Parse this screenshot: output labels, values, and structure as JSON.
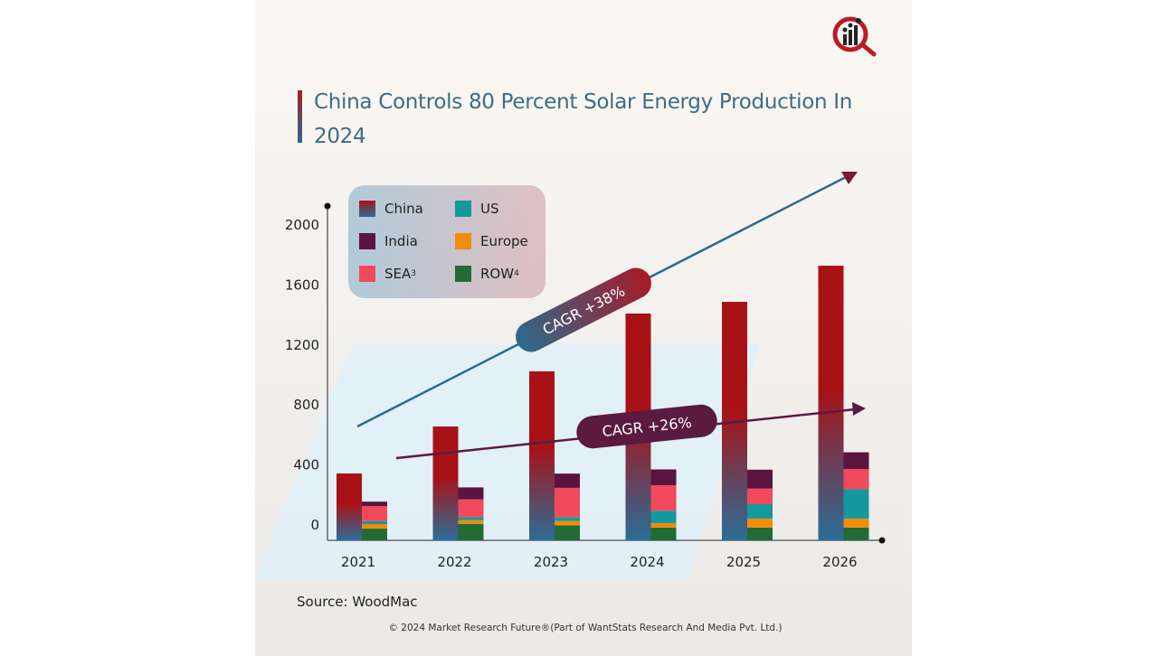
{
  "title": "China Controls 80 Percent Solar Energy Production In 2024",
  "source": "Source: WoodMac",
  "copyright": "© 2024 Market Research Future®(Part of WantStats Research And Media Pvt. Ltd.)",
  "colors": {
    "china_top": "#a81217",
    "china_bottom": "#2a6e98",
    "india": "#5b1440",
    "sea": "#f2495c",
    "us": "#14999e",
    "europe": "#f28a0a",
    "row": "#226b33",
    "cagr38": "#2d6a8c",
    "cagr26": "#5b1a40"
  },
  "legend": [
    {
      "label": "China",
      "sup": "",
      "key": "china"
    },
    {
      "label": "US",
      "sup": "",
      "key": "us"
    },
    {
      "label": "India",
      "sup": "",
      "key": "india"
    },
    {
      "label": "Europe",
      "sup": "",
      "key": "europe"
    },
    {
      "label": "SEA",
      "sup": "3",
      "key": "sea"
    },
    {
      "label": "ROW",
      "sup": "4",
      "key": "row"
    }
  ],
  "chart_data": {
    "type": "bar",
    "title": "China Controls 80 Percent Solar Energy Production In 2024",
    "categories": [
      "2021",
      "2022",
      "2023",
      "2024",
      "2025",
      "2026"
    ],
    "yticks": [
      "0",
      "400",
      "800",
      "1200",
      "1600",
      "2000"
    ],
    "ylim": [
      0,
      2200
    ],
    "series": [
      {
        "name": "China",
        "stack": "china",
        "values": [
          446,
          759,
          1127,
          1512,
          1590,
          1831
        ]
      },
      {
        "name": "ROW",
        "stack": "others",
        "values": [
          78,
          110,
          100,
          85,
          85,
          85
        ]
      },
      {
        "name": "Europe",
        "stack": "others",
        "values": [
          30,
          25,
          30,
          30,
          60,
          60
        ]
      },
      {
        "name": "US",
        "stack": "others",
        "values": [
          20,
          20,
          25,
          82,
          96,
          196
        ]
      },
      {
        "name": "SEA",
        "stack": "others",
        "values": [
          100,
          118,
          195,
          170,
          104,
          134
        ]
      },
      {
        "name": "India",
        "stack": "others",
        "values": [
          30,
          80,
          95,
          106,
          126,
          112
        ]
      }
    ],
    "annotations": [
      {
        "text": "CAGR +38%"
      },
      {
        "text": "CAGR +26%"
      }
    ],
    "grid": false,
    "legend_position": "top-left"
  }
}
